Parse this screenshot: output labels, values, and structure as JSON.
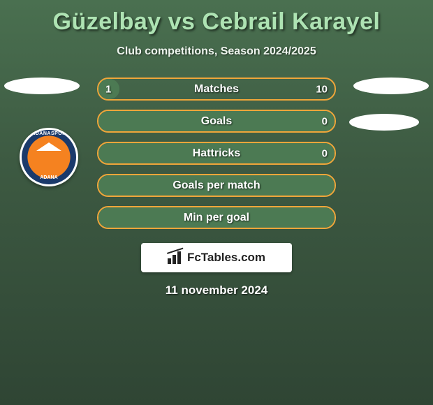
{
  "title": "Güzelbay vs Cebrail Karayel",
  "subtitle": "Club competitions, Season 2024/2025",
  "club": {
    "name_top": "ADANASPOR",
    "name_bottom": "ADANA"
  },
  "colors": {
    "title": "#aee3b3",
    "text": "#ffffff",
    "accent_border": "#f0a63a",
    "accent_fill": "#4c7a53",
    "brand_bg": "#ffffff",
    "brand_text": "#222222"
  },
  "bars": [
    {
      "label": "Matches",
      "left": "1",
      "right": "10",
      "fill_pct": 9
    },
    {
      "label": "Goals",
      "left": "",
      "right": "0",
      "fill_pct": 100
    },
    {
      "label": "Hattricks",
      "left": "",
      "right": "0",
      "fill_pct": 100
    },
    {
      "label": "Goals per match",
      "left": "",
      "right": "",
      "fill_pct": 100
    },
    {
      "label": "Min per goal",
      "left": "",
      "right": "",
      "fill_pct": 100
    }
  ],
  "branding": "FcTables.com",
  "date": "11 november 2024"
}
